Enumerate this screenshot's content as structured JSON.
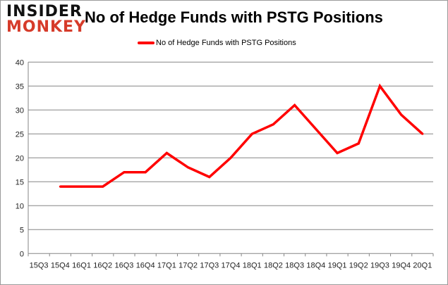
{
  "logo": {
    "line1": "INSIDER",
    "line2": "MONKEY"
  },
  "chart_data": {
    "type": "line",
    "title": "No of Hedge Funds with PSTG Positions",
    "categories": [
      "15Q3",
      "15Q4",
      "16Q1",
      "16Q2",
      "16Q3",
      "16Q4",
      "17Q1",
      "17Q2",
      "17Q3",
      "17Q4",
      "18Q1",
      "18Q2",
      "18Q3",
      "18Q4",
      "19Q1",
      "19Q2",
      "19Q3",
      "19Q4",
      "20Q1"
    ],
    "series": [
      {
        "name": "No of Hedge Funds with PSTG Positions",
        "color": "#ff0000",
        "values": [
          null,
          14,
          14,
          14,
          17,
          17,
          21,
          18,
          16,
          20,
          25,
          27,
          31,
          26,
          21,
          23,
          35,
          29,
          25
        ]
      }
    ],
    "ylim": [
      0,
      40
    ],
    "yticks": [
      0,
      5,
      10,
      15,
      20,
      25,
      30,
      35,
      40
    ],
    "grid": true,
    "legend": "top-center"
  }
}
